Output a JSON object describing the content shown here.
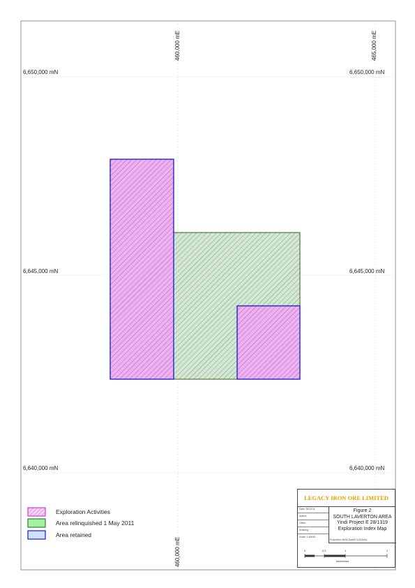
{
  "map": {
    "easting_labels": [
      "460,000 mE",
      "465,000 mE"
    ],
    "northing_labels": [
      "6,650,000 mN",
      "6,645,000 mN",
      "6,640,000 mN"
    ],
    "tenements": [
      {
        "name": "Exploration Activities",
        "fill": "#ebb4ee",
        "hatch": "#d25fd5",
        "border": "#1515d8"
      },
      {
        "name": "Area relinquished 1 May 2011",
        "fill": "#cfe3cf",
        "hatch": "#7ab07a",
        "border": "#3b5e12"
      },
      {
        "name": "Area retained",
        "border": "#1515d8"
      }
    ]
  },
  "legend": {
    "items": [
      {
        "label": "Exploration Activities",
        "fill": "#ebb4ee",
        "border": "#d040d0"
      },
      {
        "label": "Area relinquished 1 May 2011",
        "fill": "#a4f0a4",
        "border": "#2e7d2e"
      },
      {
        "label": "Area retained",
        "fill": "#cfe0ff",
        "border": "#1515d8"
      }
    ]
  },
  "title_block": {
    "company": "LEGACY IRON ORE LIMITED",
    "figure": "Figure 2",
    "area": "SOUTH LAVERTON AREA",
    "project": "Yindi Project E 28/1319",
    "map_title": "Exploration Index Map",
    "meta": [
      "Date: 05/12/11",
      "Author:",
      "Office:",
      "Drawing:",
      "Scale: 1:60000"
    ],
    "projection": "Projection: MGA Zone51 (GDA94)",
    "scale_labels": [
      "0",
      "0.5",
      "1",
      "2"
    ],
    "scale_unit": "kilometres"
  }
}
